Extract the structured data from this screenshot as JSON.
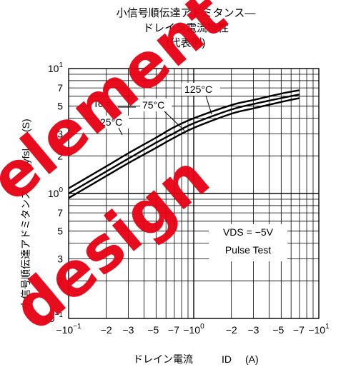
{
  "chart_data": {
    "type": "line",
    "title_lines": [
      "小信号順伝達アドミタンス—",
      "ドレイン電流特性",
      "(代表例)"
    ],
    "xlabel": "ドレイン電流",
    "xlabel_symbol": "ID",
    "xlabel_sub": "D",
    "xlabel_unit": "(A)",
    "ylabel": "小信号順伝達アドミタンス",
    "ylabel_symbol": "|yfs|",
    "ylabel_unit": "(S)",
    "x_scale": "log",
    "y_scale": "log",
    "x_axis_note": "magnitude of negative drain current",
    "xlim": [
      0.1,
      10
    ],
    "ylim": [
      0.1,
      10
    ],
    "x_ticks": [
      {
        "v": 0.1,
        "base": "−10",
        "exp": "−1"
      },
      {
        "v": 0.2,
        "base": "−2"
      },
      {
        "v": 0.3,
        "base": "−3"
      },
      {
        "v": 0.5,
        "base": "−5"
      },
      {
        "v": 0.7,
        "base": "−7"
      },
      {
        "v": 1,
        "base": "−10",
        "exp": "0"
      },
      {
        "v": 2,
        "base": "−2"
      },
      {
        "v": 3,
        "base": "−3"
      },
      {
        "v": 5,
        "base": "−5"
      },
      {
        "v": 7,
        "base": "−7"
      },
      {
        "v": 10,
        "base": "−10",
        "exp": "1"
      }
    ],
    "y_ticks": [
      {
        "v": 0.1,
        "base": "10",
        "exp": "−1"
      },
      {
        "v": 0.2,
        "base": "2"
      },
      {
        "v": 0.3,
        "base": "3"
      },
      {
        "v": 0.5,
        "base": "5"
      },
      {
        "v": 0.7,
        "base": "7"
      },
      {
        "v": 1,
        "base": "10",
        "exp": "0"
      },
      {
        "v": 2,
        "base": "2"
      },
      {
        "v": 3,
        "base": "3"
      },
      {
        "v": 5,
        "base": "5"
      },
      {
        "v": 7,
        "base": "7"
      },
      {
        "v": 10,
        "base": "10",
        "exp": "1"
      }
    ],
    "grid": true,
    "series": [
      {
        "name": "25°C",
        "x": [
          0.1,
          0.2,
          0.3,
          0.5,
          0.7,
          1,
          2,
          3,
          5,
          7
        ],
        "y": [
          1.1,
          1.65,
          2.1,
          2.8,
          3.4,
          4.0,
          5.1,
          5.6,
          6.3,
          6.7
        ]
      },
      {
        "name": "75°C",
        "x": [
          0.1,
          0.2,
          0.3,
          0.5,
          0.7,
          1,
          2,
          3,
          5,
          7
        ],
        "y": [
          1.0,
          1.5,
          1.9,
          2.55,
          3.05,
          3.65,
          4.7,
          5.2,
          5.8,
          6.2
        ]
      },
      {
        "name": "125°C",
        "x": [
          0.1,
          0.2,
          0.3,
          0.5,
          0.7,
          1,
          2,
          3,
          5,
          7
        ],
        "y": [
          0.92,
          1.38,
          1.75,
          2.32,
          2.8,
          3.35,
          4.35,
          4.8,
          5.4,
          5.8
        ]
      }
    ],
    "annotations": {
      "tc_label": "Tc =",
      "label_25": "25°C",
      "label_75": "75°C",
      "label_125": "125°C",
      "condition_1": "VDS = −5V",
      "condition_2": "Pulse Test"
    }
  },
  "watermark": {
    "text_1": "element",
    "text_2": "design",
    "color": "#e60012"
  }
}
